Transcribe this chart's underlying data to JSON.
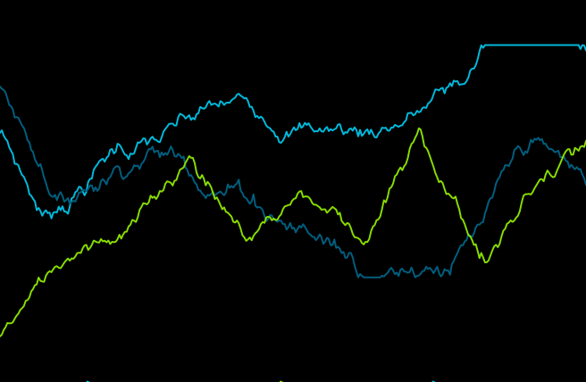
{
  "background_color": "#000000",
  "line1_color": "#00BBDD",
  "line2_color": "#005F7F",
  "line3_color": "#88DD00",
  "arrow1_color": "#00BBDD",
  "arrow2_color": "#88DD00",
  "arrow3_color": "#00BBDD",
  "line_width": 1.4,
  "figsize": [
    6.56,
    4.28
  ],
  "dpi": 100
}
